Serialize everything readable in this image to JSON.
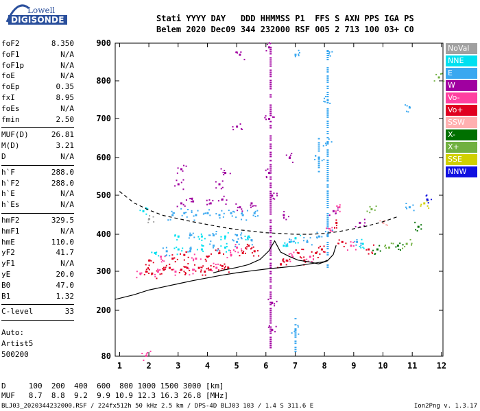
{
  "logo": {
    "line1": "Lowell",
    "line2": "DIGISONDE"
  },
  "header": {
    "line1": "Stati YYYY DAY   DDD HHMMSS P1  FFS S AXN PPS IGA PS",
    "line2": "Belem 2020 Dec09 344 232000 RSF 005 2 713 100 03+ C0"
  },
  "params_group1": [
    {
      "label": "foF2",
      "value": "8.350"
    },
    {
      "label": "foF1",
      "value": "N/A"
    },
    {
      "label": "foF1p",
      "value": "N/A"
    },
    {
      "label": "foE",
      "value": "N/A"
    },
    {
      "label": "foEp",
      "value": "0.35"
    },
    {
      "label": "fxI",
      "value": "8.95"
    },
    {
      "label": "foEs",
      "value": "N/A"
    },
    {
      "label": "fmin",
      "value": "2.50"
    }
  ],
  "params_group2": [
    {
      "label": "MUF(D)",
      "value": "26.81"
    },
    {
      "label": "M(D)",
      "value": "3.21"
    },
    {
      "label": "D",
      "value": "N/A"
    }
  ],
  "params_group3": [
    {
      "label": "h`F",
      "value": "288.0"
    },
    {
      "label": "h`F2",
      "value": "288.0"
    },
    {
      "label": "h`E",
      "value": "N/A"
    },
    {
      "label": "h`Es",
      "value": "N/A"
    }
  ],
  "params_group4": [
    {
      "label": "hmF2",
      "value": "329.5"
    },
    {
      "label": "hmF1",
      "value": "N/A"
    },
    {
      "label": "hmE",
      "value": "110.0"
    },
    {
      "label": "yF2",
      "value": "41.7"
    },
    {
      "label": "yF1",
      "value": "N/A"
    },
    {
      "label": "yE",
      "value": "20.0"
    },
    {
      "label": "B0",
      "value": "47.0"
    },
    {
      "label": "B1",
      "value": "1.32"
    }
  ],
  "params_group5": [
    {
      "label": "C-level",
      "value": "33"
    }
  ],
  "auto": {
    "line1": "Auto:",
    "line2": "Artist5",
    "line3": "500200"
  },
  "legend": [
    {
      "label": "NoVal",
      "color": "#a0a0a0"
    },
    {
      "label": "NNE",
      "color": "#00e0f0"
    },
    {
      "label": "E",
      "color": "#3aa8f0"
    },
    {
      "label": "W",
      "color": "#a000a0"
    },
    {
      "label": "Vo-",
      "color": "#ff40a0"
    },
    {
      "label": "Vo+",
      "color": "#e00020"
    },
    {
      "label": "SSW",
      "color": "#ffb0b0"
    },
    {
      "label": "X-",
      "color": "#007000"
    },
    {
      "label": "X+",
      "color": "#70b040"
    },
    {
      "label": "SSE",
      "color": "#d0d000"
    },
    {
      "label": "NNW",
      "color": "#1010e0"
    }
  ],
  "footer": {
    "line1": "D     100  200  400  600  800 1000 1500 3000 [km]",
    "line2": "MUF   8.7  8.8  9.2  9.9 10.9 12.3 16.3 26.8 [MHz]"
  },
  "file_line": "BLJ03_2020344232000.RSF / 224fx512h 50 kHz 2.5 km / DPS-4D BLJ03 103 / 1.4 S 311.6 E",
  "version": "Ion2Png v. 1.3.17",
  "chart_data": {
    "type": "scatter",
    "x_ticks": [
      "1",
      "2",
      "3",
      "4",
      "5",
      "6",
      "7",
      "8",
      "9",
      "10",
      "11",
      "12"
    ],
    "y_ticks": [
      "80",
      "200",
      "300",
      "400",
      "500",
      "600",
      "700",
      "800",
      "900"
    ],
    "xlim": [
      0.85,
      12.05
    ],
    "ylim": [
      80,
      910
    ],
    "y_scale": "nonlinear",
    "traces": [
      {
        "name": "dashed",
        "style": "dashed",
        "x": [
          1,
          1.5,
          2,
          2.5,
          3,
          3.5,
          4,
          4.5,
          5,
          5.5,
          6,
          6.5,
          7,
          7.5,
          8,
          8.5,
          9,
          9.5,
          10,
          10.5
        ],
        "y": [
          510,
          480,
          462,
          448,
          440,
          432,
          425,
          418,
          412,
          408,
          404,
          402,
          400,
          400,
          402,
          407,
          414,
          422,
          432,
          445
        ]
      },
      {
        "name": "lower",
        "style": "solid",
        "x": [
          0.85,
          1.5,
          2,
          2.5,
          3,
          3.5,
          4,
          4.5,
          5,
          5.5,
          6,
          6.5,
          7,
          7.5,
          8,
          8.1
        ],
        "y": [
          228,
          240,
          252,
          260,
          268,
          276,
          283,
          290,
          296,
          301,
          306,
          310,
          314,
          320,
          326,
          330
        ]
      },
      {
        "name": "profile",
        "style": "solid",
        "x": [
          4.2,
          4.6,
          5,
          5.4,
          5.8,
          6.1,
          6.3,
          6.5,
          6.8,
          7.1,
          7.5,
          7.8,
          8.1,
          8.3,
          8.4
        ],
        "y": [
          296,
          304,
          310,
          318,
          332,
          355,
          382,
          352,
          340,
          330,
          325,
          320,
          328,
          345,
          370
        ]
      }
    ],
    "dots": [
      {
        "x": 1.7,
        "y": 295,
        "c": 4
      },
      {
        "x": 1.9,
        "y": 300,
        "c": 5
      },
      {
        "x": 2.1,
        "y": 295,
        "c": 5
      },
      {
        "x": 2.3,
        "y": 300,
        "c": 4
      },
      {
        "x": 2.5,
        "y": 305,
        "c": 5
      },
      {
        "x": 2.7,
        "y": 310,
        "c": 5
      },
      {
        "x": 2.9,
        "y": 300,
        "c": 4
      },
      {
        "x": 3.1,
        "y": 305,
        "c": 5
      },
      {
        "x": 3.3,
        "y": 310,
        "c": 5
      },
      {
        "x": 3.5,
        "y": 305,
        "c": 4
      },
      {
        "x": 3.7,
        "y": 310,
        "c": 5
      },
      {
        "x": 3.9,
        "y": 300,
        "c": 5
      },
      {
        "x": 4.1,
        "y": 305,
        "c": 5
      },
      {
        "x": 4.3,
        "y": 310,
        "c": 4
      },
      {
        "x": 4.5,
        "y": 315,
        "c": 5
      },
      {
        "x": 4.7,
        "y": 310,
        "c": 5
      },
      {
        "x": 2.0,
        "y": 330,
        "c": 5
      },
      {
        "x": 2.4,
        "y": 340,
        "c": 4
      },
      {
        "x": 2.8,
        "y": 335,
        "c": 5
      },
      {
        "x": 3.2,
        "y": 345,
        "c": 5
      },
      {
        "x": 3.6,
        "y": 335,
        "c": 4
      },
      {
        "x": 4.0,
        "y": 340,
        "c": 5
      },
      {
        "x": 4.4,
        "y": 350,
        "c": 5
      },
      {
        "x": 4.8,
        "y": 345,
        "c": 4
      },
      {
        "x": 5.2,
        "y": 350,
        "c": 5
      },
      {
        "x": 5.6,
        "y": 355,
        "c": 5
      },
      {
        "x": 5.0,
        "y": 365,
        "c": 4
      },
      {
        "x": 5.4,
        "y": 370,
        "c": 5
      },
      {
        "x": 2.2,
        "y": 350,
        "c": 1
      },
      {
        "x": 2.6,
        "y": 355,
        "c": 2
      },
      {
        "x": 3.0,
        "y": 360,
        "c": 1
      },
      {
        "x": 3.4,
        "y": 355,
        "c": 2
      },
      {
        "x": 3.8,
        "y": 360,
        "c": 1
      },
      {
        "x": 4.2,
        "y": 370,
        "c": 2
      },
      {
        "x": 4.6,
        "y": 365,
        "c": 1
      },
      {
        "x": 5.0,
        "y": 380,
        "c": 2
      },
      {
        "x": 5.5,
        "y": 385,
        "c": 2
      },
      {
        "x": 3.0,
        "y": 395,
        "c": 1
      },
      {
        "x": 3.4,
        "y": 398,
        "c": 2
      },
      {
        "x": 3.8,
        "y": 395,
        "c": 1
      },
      {
        "x": 4.2,
        "y": 398,
        "c": 2
      },
      {
        "x": 4.6,
        "y": 395,
        "c": 1
      },
      {
        "x": 5.0,
        "y": 398,
        "c": 2
      },
      {
        "x": 5.4,
        "y": 395,
        "c": 1
      },
      {
        "x": 2.8,
        "y": 450,
        "c": 2
      },
      {
        "x": 3.2,
        "y": 455,
        "c": 2
      },
      {
        "x": 3.6,
        "y": 450,
        "c": 2
      },
      {
        "x": 4.0,
        "y": 455,
        "c": 2
      },
      {
        "x": 4.4,
        "y": 450,
        "c": 2
      },
      {
        "x": 4.8,
        "y": 455,
        "c": 2
      },
      {
        "x": 5.2,
        "y": 450,
        "c": 2
      },
      {
        "x": 5.6,
        "y": 455,
        "c": 2
      },
      {
        "x": 3.1,
        "y": 480,
        "c": 3
      },
      {
        "x": 3.5,
        "y": 485,
        "c": 3
      },
      {
        "x": 4.1,
        "y": 480,
        "c": 3
      },
      {
        "x": 4.5,
        "y": 490,
        "c": 3
      },
      {
        "x": 5.1,
        "y": 470,
        "c": 3
      },
      {
        "x": 5.5,
        "y": 480,
        "c": 3
      },
      {
        "x": 3.0,
        "y": 530,
        "c": 3
      },
      {
        "x": 4.4,
        "y": 530,
        "c": 3
      },
      {
        "x": 6.5,
        "y": 320,
        "c": 5
      },
      {
        "x": 6.7,
        "y": 330,
        "c": 5
      },
      {
        "x": 6.9,
        "y": 340,
        "c": 4
      },
      {
        "x": 7.1,
        "y": 350,
        "c": 5
      },
      {
        "x": 7.3,
        "y": 330,
        "c": 5
      },
      {
        "x": 7.5,
        "y": 340,
        "c": 4
      },
      {
        "x": 7.7,
        "y": 350,
        "c": 5
      },
      {
        "x": 7.9,
        "y": 360,
        "c": 5
      },
      {
        "x": 6.6,
        "y": 370,
        "c": 1
      },
      {
        "x": 6.8,
        "y": 380,
        "c": 2
      },
      {
        "x": 7.0,
        "y": 390,
        "c": 1
      },
      {
        "x": 7.4,
        "y": 380,
        "c": 2
      },
      {
        "x": 7.8,
        "y": 395,
        "c": 2
      },
      {
        "x": 8.2,
        "y": 410,
        "c": 4
      },
      {
        "x": 8.4,
        "y": 430,
        "c": 5
      },
      {
        "x": 8.3,
        "y": 460,
        "c": 3
      },
      {
        "x": 8.5,
        "y": 470,
        "c": 4
      },
      {
        "x": 8.1,
        "y": 400,
        "c": 2
      },
      {
        "x": 8.6,
        "y": 380,
        "c": 5
      },
      {
        "x": 8.9,
        "y": 370,
        "c": 4
      },
      {
        "x": 9.1,
        "y": 380,
        "c": 2
      },
      {
        "x": 9.3,
        "y": 375,
        "c": 1
      },
      {
        "x": 9.5,
        "y": 360,
        "c": 5
      },
      {
        "x": 9.8,
        "y": 360,
        "c": 7
      },
      {
        "x": 10.2,
        "y": 365,
        "c": 8
      },
      {
        "x": 10.5,
        "y": 370,
        "c": 7
      },
      {
        "x": 10.8,
        "y": 375,
        "c": 8
      },
      {
        "x": 11.2,
        "y": 420,
        "c": 7
      },
      {
        "x": 11.4,
        "y": 480,
        "c": 9
      },
      {
        "x": 11.5,
        "y": 490,
        "c": 10
      },
      {
        "x": 10.9,
        "y": 470,
        "c": 2
      },
      {
        "x": 9.6,
        "y": 465,
        "c": 8
      },
      {
        "x": 9.2,
        "y": 430,
        "c": 3
      },
      {
        "x": 10.0,
        "y": 430,
        "c": 6
      },
      {
        "x": 1.8,
        "y": 460,
        "c": 1
      },
      {
        "x": 2.0,
        "y": 440,
        "c": 0
      },
      {
        "x": 6.1,
        "y": 890,
        "c": 3
      },
      {
        "x": 6.1,
        "y": 700,
        "c": 3
      },
      {
        "x": 6.1,
        "y": 560,
        "c": 3
      },
      {
        "x": 6.2,
        "y": 500,
        "c": 3
      },
      {
        "x": 6.2,
        "y": 220,
        "c": 3
      },
      {
        "x": 6.2,
        "y": 150,
        "c": 3
      },
      {
        "x": 6.8,
        "y": 600,
        "c": 3
      },
      {
        "x": 6.6,
        "y": 450,
        "c": 3
      },
      {
        "x": 7.0,
        "y": 870,
        "c": 2
      },
      {
        "x": 7.0,
        "y": 150,
        "c": 2
      },
      {
        "x": 7.8,
        "y": 600,
        "c": 2
      },
      {
        "x": 8.1,
        "y": 880,
        "c": 2
      },
      {
        "x": 8.1,
        "y": 750,
        "c": 2
      },
      {
        "x": 8.1,
        "y": 640,
        "c": 2
      },
      {
        "x": 10.9,
        "y": 730,
        "c": 2
      },
      {
        "x": 4.6,
        "y": 560,
        "c": 3
      },
      {
        "x": 3.1,
        "y": 570,
        "c": 3
      },
      {
        "x": 5.1,
        "y": 870,
        "c": 3
      },
      {
        "x": 5.0,
        "y": 680,
        "c": 3
      },
      {
        "x": 11.9,
        "y": 810,
        "c": 8
      },
      {
        "x": 1.9,
        "y": 82,
        "c": 4
      }
    ],
    "vertical_streaks": [
      {
        "x": 6.15,
        "y1": 95,
        "y2": 890,
        "c": 3
      },
      {
        "x": 8.1,
        "y1": 300,
        "y2": 880,
        "c": 2
      },
      {
        "x": 7.0,
        "y1": 90,
        "y2": 180,
        "c": 2
      },
      {
        "x": 7.8,
        "y1": 560,
        "y2": 650,
        "c": 2
      }
    ]
  }
}
